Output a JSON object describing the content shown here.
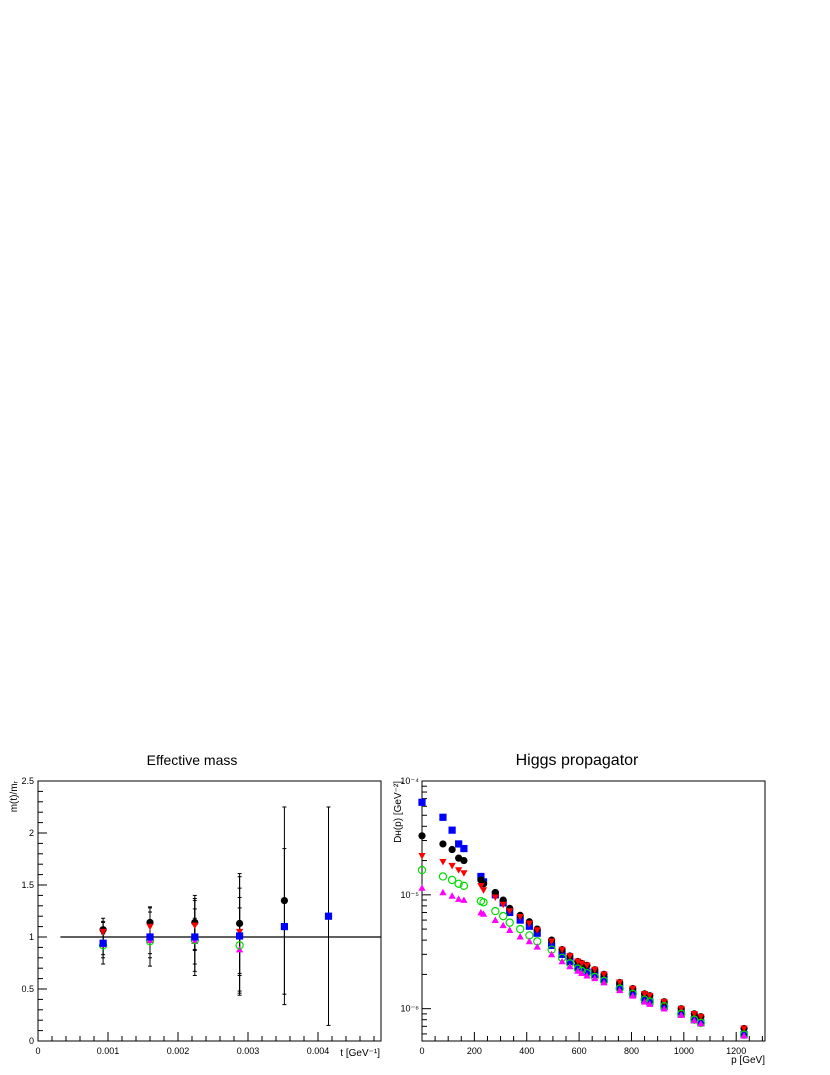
{
  "chart_data": [
    {
      "type": "scatter",
      "title": "Effective mass",
      "xlabel": "t [GeV⁻¹]",
      "ylabel": "m(t)/mᵣ",
      "xlim": [
        0,
        0.0049
      ],
      "ylim": [
        0,
        2.5
      ],
      "x_ticks": [
        "0",
        "0.001",
        "0.002",
        "0.003",
        "0.004"
      ],
      "y_ticks": [
        "0",
        "0.5",
        "1",
        "1.5",
        "2",
        "2.5"
      ],
      "reference_line": {
        "y": 1.0,
        "x_from": 0.00032,
        "x_to": 0.0049
      },
      "series": [
        {
          "marker": "circle",
          "color": "#000000",
          "points": [
            {
              "x": 0.00093,
              "y": 1.07,
              "err": 0.11
            },
            {
              "x": 0.0016,
              "y": 1.14,
              "err": 0.15
            },
            {
              "x": 0.00224,
              "y": 1.14,
              "err": 0.26
            },
            {
              "x": 0.00288,
              "y": 1.13,
              "err": 0.48
            },
            {
              "x": 0.00352,
              "y": 1.35,
              "err": 0.9
            }
          ]
        },
        {
          "marker": "triangle-down",
          "color": "#ff0000",
          "points": [
            {
              "x": 0.00093,
              "y": 1.05,
              "err": 0.1
            },
            {
              "x": 0.0016,
              "y": 1.1,
              "err": 0.14
            },
            {
              "x": 0.00224,
              "y": 1.11,
              "err": 0.24
            },
            {
              "x": 0.00288,
              "y": 1.05,
              "err": 0.42
            }
          ]
        },
        {
          "marker": "triangle-up",
          "color": "#ff00ff",
          "points": [
            {
              "x": 0.00093,
              "y": 0.93,
              "err": 0.1
            },
            {
              "x": 0.0016,
              "y": 0.97,
              "err": 0.13
            },
            {
              "x": 0.00224,
              "y": 0.96,
              "err": 0.22
            },
            {
              "x": 0.00288,
              "y": 0.88,
              "err": 0.4
            }
          ]
        },
        {
          "marker": "circle-open",
          "color": "#00dd00",
          "points": [
            {
              "x": 0.00093,
              "y": 0.92,
              "err": 0.12
            },
            {
              "x": 0.0016,
              "y": 0.96,
              "err": 0.16
            },
            {
              "x": 0.00224,
              "y": 0.97,
              "err": 0.3
            },
            {
              "x": 0.00288,
              "y": 0.92,
              "err": 0.46
            }
          ]
        },
        {
          "marker": "square",
          "color": "#0000ff",
          "points": [
            {
              "x": 0.00093,
              "y": 0.94,
              "err": 0.2
            },
            {
              "x": 0.0016,
              "y": 1.0,
              "err": 0.28
            },
            {
              "x": 0.00224,
              "y": 1.0,
              "err": 0.37
            },
            {
              "x": 0.00288,
              "y": 1.01,
              "err": 0.57
            },
            {
              "x": 0.00352,
              "y": 1.1,
              "err": 0.75
            },
            {
              "x": 0.00415,
              "y": 1.2,
              "err": 1.05
            }
          ]
        }
      ]
    },
    {
      "type": "scatter",
      "title": "Higgs propagator",
      "xlabel": "p [GeV]",
      "ylabel": "Dʜ(p) [GeV⁻²]",
      "xlim": [
        0,
        1310
      ],
      "ylim": [
        5.2e-07,
        0.0001
      ],
      "y_scale": "log",
      "x_ticks": [
        "0",
        "200",
        "400",
        "600",
        "800",
        "1000",
        "1200"
      ],
      "y_ticks": [
        "10⁻⁶",
        "10⁻⁵",
        "10⁻⁴"
      ],
      "series": [
        {
          "marker": "square",
          "color": "#0000ff",
          "points": [
            [
              0,
              6.5e-05
            ],
            [
              80,
              4.8e-05
            ],
            [
              115,
              3.7e-05
            ],
            [
              140,
              2.8e-05
            ],
            [
              160,
              2.55e-05
            ],
            [
              225,
              1.45e-05
            ],
            [
              235,
              1.3e-05
            ],
            [
              280,
              1e-05
            ],
            [
              310,
              8.5e-06
            ],
            [
              335,
              7e-06
            ],
            [
              375,
              6e-06
            ],
            [
              410,
              5.3e-06
            ],
            [
              440,
              4.6e-06
            ],
            [
              495,
              3.6e-06
            ],
            [
              535,
              3e-06
            ],
            [
              565,
              2.6e-06
            ],
            [
              595,
              2.3e-06
            ],
            [
              610,
              2.2e-06
            ],
            [
              630,
              2.1e-06
            ],
            [
              660,
              2e-06
            ],
            [
              695,
              1.8e-06
            ],
            [
              755,
              1.55e-06
            ],
            [
              805,
              1.35e-06
            ],
            [
              850,
              1.2e-06
            ],
            [
              870,
              1.15e-06
            ],
            [
              925,
              1.05e-06
            ],
            [
              990,
              9e-07
            ],
            [
              1040,
              8e-07
            ],
            [
              1065,
              7.5e-07
            ],
            [
              1230,
              5.9e-07
            ]
          ]
        },
        {
          "marker": "circle",
          "color": "#000000",
          "points": [
            [
              0,
              3.3e-05
            ],
            [
              80,
              2.8e-05
            ],
            [
              115,
              2.5e-05
            ],
            [
              140,
              2.1e-05
            ],
            [
              160,
              2e-05
            ],
            [
              225,
              1.35e-05
            ],
            [
              235,
              1.25e-05
            ],
            [
              280,
              1.05e-05
            ],
            [
              310,
              9e-06
            ],
            [
              335,
              7.6e-06
            ],
            [
              375,
              6.6e-06
            ],
            [
              410,
              5.8e-06
            ],
            [
              440,
              5e-06
            ],
            [
              495,
              4e-06
            ],
            [
              535,
              3.3e-06
            ],
            [
              565,
              2.9e-06
            ],
            [
              595,
              2.6e-06
            ],
            [
              610,
              2.5e-06
            ],
            [
              630,
              2.4e-06
            ],
            [
              660,
              2.2e-06
            ],
            [
              695,
              2e-06
            ],
            [
              755,
              1.7e-06
            ],
            [
              805,
              1.5e-06
            ],
            [
              850,
              1.35e-06
            ],
            [
              870,
              1.3e-06
            ],
            [
              925,
              1.15e-06
            ],
            [
              990,
              1e-06
            ],
            [
              1040,
              9e-07
            ],
            [
              1065,
              8.5e-07
            ],
            [
              1230,
              6.7e-07
            ]
          ]
        },
        {
          "marker": "triangle-down",
          "color": "#ff0000",
          "points": [
            [
              0,
              2.2e-05
            ],
            [
              80,
              1.95e-05
            ],
            [
              115,
              1.8e-05
            ],
            [
              140,
              1.65e-05
            ],
            [
              160,
              1.55e-05
            ],
            [
              225,
              1.2e-05
            ],
            [
              235,
              1.1e-05
            ],
            [
              280,
              9.5e-06
            ],
            [
              310,
              8.2e-06
            ],
            [
              335,
              7.2e-06
            ],
            [
              375,
              6.4e-06
            ],
            [
              410,
              5.6e-06
            ],
            [
              440,
              4.9e-06
            ],
            [
              495,
              3.9e-06
            ],
            [
              535,
              3.3e-06
            ],
            [
              565,
              2.9e-06
            ],
            [
              595,
              2.6e-06
            ],
            [
              610,
              2.5e-06
            ],
            [
              630,
              2.4e-06
            ],
            [
              660,
              2.2e-06
            ],
            [
              695,
              2e-06
            ],
            [
              755,
              1.7e-06
            ],
            [
              805,
              1.5e-06
            ],
            [
              850,
              1.35e-06
            ],
            [
              870,
              1.3e-06
            ],
            [
              925,
              1.15e-06
            ],
            [
              990,
              1e-06
            ],
            [
              1040,
              9e-07
            ],
            [
              1065,
              8.5e-07
            ],
            [
              1230,
              6.7e-07
            ]
          ]
        },
        {
          "marker": "circle-open",
          "color": "#00dd00",
          "points": [
            [
              0,
              1.65e-05
            ],
            [
              80,
              1.45e-05
            ],
            [
              115,
              1.35e-05
            ],
            [
              140,
              1.25e-05
            ],
            [
              160,
              1.2e-05
            ],
            [
              225,
              8.8e-06
            ],
            [
              235,
              8.6e-06
            ],
            [
              280,
              7.2e-06
            ],
            [
              310,
              6.5e-06
            ],
            [
              335,
              5.7e-06
            ],
            [
              375,
              5e-06
            ],
            [
              410,
              4.4e-06
            ],
            [
              440,
              3.9e-06
            ],
            [
              495,
              3.3e-06
            ],
            [
              535,
              2.8e-06
            ],
            [
              565,
              2.5e-06
            ],
            [
              595,
              2.25e-06
            ],
            [
              610,
              2.15e-06
            ],
            [
              630,
              2.05e-06
            ],
            [
              660,
              1.9e-06
            ],
            [
              695,
              1.75e-06
            ],
            [
              755,
              1.5e-06
            ],
            [
              805,
              1.35e-06
            ],
            [
              850,
              1.2e-06
            ],
            [
              870,
              1.15e-06
            ],
            [
              925,
              1.05e-06
            ],
            [
              990,
              9e-07
            ],
            [
              1040,
              8e-07
            ],
            [
              1065,
              7.5e-07
            ],
            [
              1230,
              5.9e-07
            ]
          ]
        },
        {
          "marker": "triangle-up",
          "color": "#ff00ff",
          "points": [
            [
              0,
              1.15e-05
            ],
            [
              80,
              1.05e-05
            ],
            [
              115,
              9.8e-06
            ],
            [
              140,
              9.2e-06
            ],
            [
              160,
              9e-06
            ],
            [
              225,
              7e-06
            ],
            [
              235,
              6.8e-06
            ],
            [
              280,
              6e-06
            ],
            [
              310,
              5.4e-06
            ],
            [
              335,
              4.9e-06
            ],
            [
              375,
              4.3e-06
            ],
            [
              410,
              3.9e-06
            ],
            [
              440,
              3.5e-06
            ],
            [
              495,
              3e-06
            ],
            [
              535,
              2.6e-06
            ],
            [
              565,
              2.35e-06
            ],
            [
              595,
              2.15e-06
            ],
            [
              610,
              2.05e-06
            ],
            [
              630,
              1.95e-06
            ],
            [
              660,
              1.85e-06
            ],
            [
              695,
              1.7e-06
            ],
            [
              755,
              1.45e-06
            ],
            [
              805,
              1.3e-06
            ],
            [
              850,
              1.15e-06
            ],
            [
              870,
              1.1e-06
            ],
            [
              925,
              1e-06
            ],
            [
              990,
              8.8e-07
            ],
            [
              1040,
              7.9e-07
            ],
            [
              1065,
              7.4e-07
            ],
            [
              1230,
              5.8e-07
            ]
          ]
        }
      ]
    }
  ]
}
